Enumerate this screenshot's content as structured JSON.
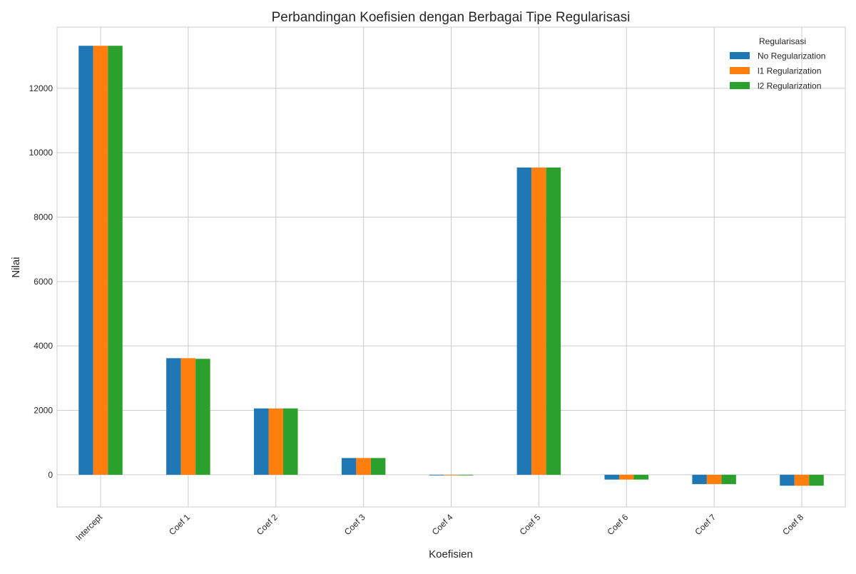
{
  "chart_data": {
    "type": "bar",
    "title": "Perbandingan Koefisien dengan Berbagai Tipe Regularisasi",
    "xlabel": "Koefisien",
    "ylabel": "Nilai",
    "categories": [
      "Intercept",
      "Coef 1",
      "Coef 2",
      "Coef 3",
      "Coef 4",
      "Coef 5",
      "Coef 6",
      "Coef 7",
      "Coef 8"
    ],
    "series": [
      {
        "name": "No Regularization",
        "color": "#1f77b4",
        "values": [
          13320,
          3620,
          2060,
          520,
          -20,
          9540,
          -150,
          -290,
          -340
        ]
      },
      {
        "name": "l1 Regularization",
        "color": "#ff7f0e",
        "values": [
          13320,
          3620,
          2060,
          520,
          -20,
          9540,
          -150,
          -290,
          -340
        ]
      },
      {
        "name": "l2 Regularization",
        "color": "#2ca02c",
        "values": [
          13320,
          3600,
          2060,
          520,
          -20,
          9540,
          -150,
          -290,
          -340
        ]
      }
    ],
    "ylim": [
      -1000,
      13900
    ],
    "yticks": [
      0,
      2000,
      4000,
      6000,
      8000,
      10000,
      12000
    ],
    "grid": true,
    "legend": {
      "title": "Regularisasi",
      "placement": "top-right"
    }
  }
}
